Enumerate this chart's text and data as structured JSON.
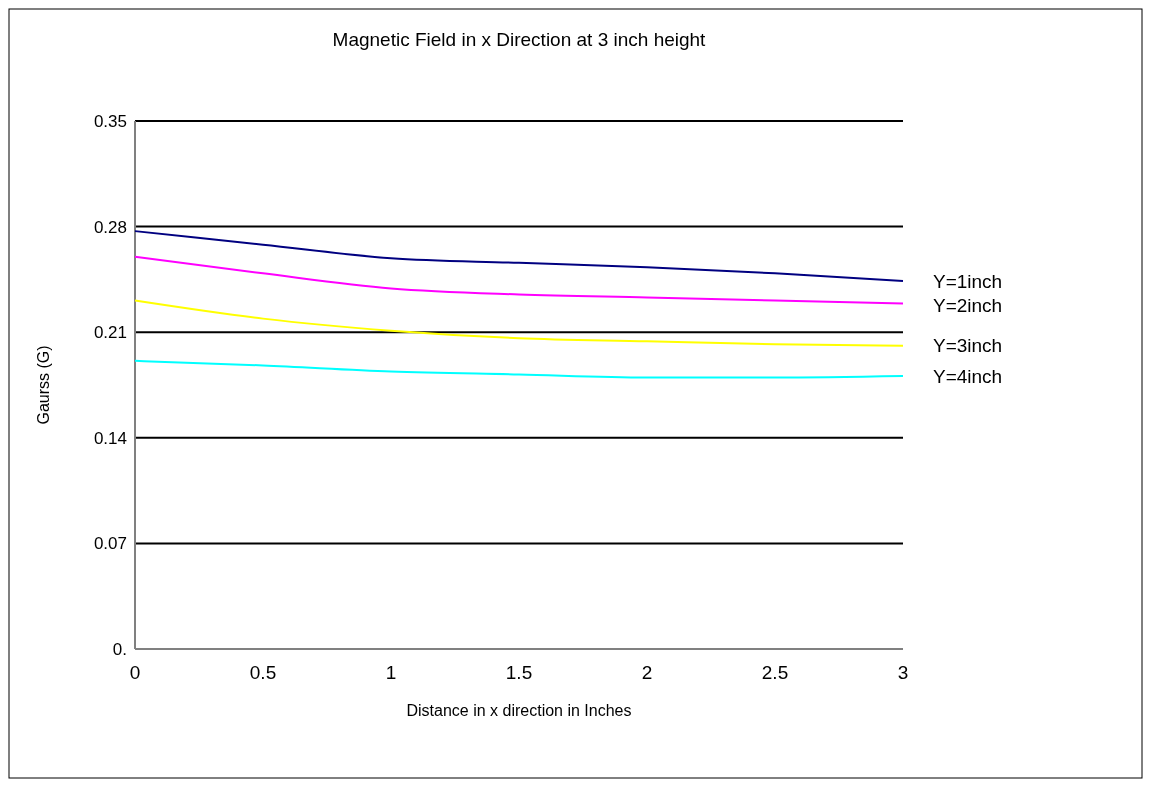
{
  "chart_data": {
    "type": "line",
    "title": "Magnetic Field in x Direction at 3 inch height",
    "xlabel": "Distance in x direction in Inches",
    "ylabel": "Gaurss (G)",
    "x": [
      0,
      0.5,
      1,
      1.5,
      2,
      2.5,
      3
    ],
    "series": [
      {
        "name": "Y=1inch",
        "color": "#000080",
        "values": [
          0.277,
          0.268,
          0.259,
          0.256,
          0.253,
          0.249,
          0.244
        ]
      },
      {
        "name": "Y=2inch",
        "color": "#ff00ff",
        "values": [
          0.26,
          0.249,
          0.239,
          0.235,
          0.233,
          0.231,
          0.229
        ]
      },
      {
        "name": "Y=3inch",
        "color": "#ffff00",
        "values": [
          0.231,
          0.219,
          0.211,
          0.206,
          0.204,
          0.202,
          0.201
        ]
      },
      {
        "name": "Y=4inch",
        "color": "#00ffff",
        "values": [
          0.191,
          0.188,
          0.184,
          0.182,
          0.18,
          0.18,
          0.181
        ]
      }
    ],
    "xlim": [
      0,
      3
    ],
    "xticks": [
      0,
      0.5,
      1,
      1.5,
      2,
      2.5,
      3
    ],
    "ylim": [
      0,
      0.35
    ],
    "yticks": [
      {
        "value": 0,
        "label": "0."
      },
      0.07,
      0.14,
      0.21,
      0.28,
      0.35
    ],
    "grid": "y",
    "marker": "none",
    "line_style": "solid"
  }
}
